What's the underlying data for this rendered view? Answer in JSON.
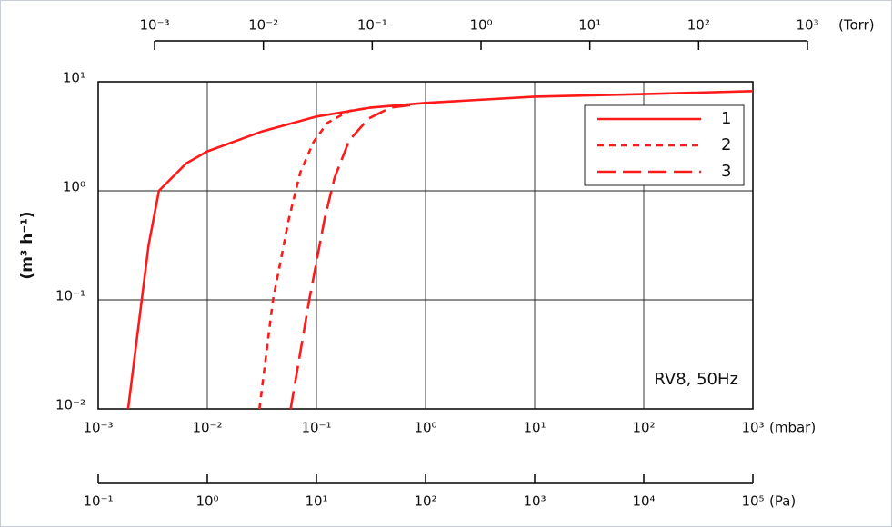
{
  "chart_data": {
    "type": "line",
    "y_label": "(m³ h⁻¹)",
    "x_unit": "(mbar)",
    "annotation": "RV8, 50Hz",
    "log_x": true,
    "log_y": true,
    "grid": true,
    "legend_position": "upper right",
    "xlim": [
      0.001,
      1000
    ],
    "xticks": [
      {
        "value": 0.001,
        "label": "10⁻³"
      },
      {
        "value": 0.01,
        "label": "10⁻²"
      },
      {
        "value": 0.1,
        "label": "10⁻¹"
      },
      {
        "value": 1,
        "label": "10⁰"
      },
      {
        "value": 10,
        "label": "10¹"
      },
      {
        "value": 100,
        "label": "10²"
      },
      {
        "value": 1000,
        "label": "10³"
      }
    ],
    "ylim": [
      0.01,
      10
    ],
    "yticks": [
      {
        "value": 0.01,
        "label": "10⁻²"
      },
      {
        "value": 0.1,
        "label": "10⁻¹"
      },
      {
        "value": 1,
        "label": "10⁰"
      },
      {
        "value": 10,
        "label": "10¹"
      }
    ],
    "torr_axis": {
      "unit": "(Torr)",
      "lim": [
        0.001,
        1000
      ],
      "ticks": [
        {
          "value": 0.001,
          "label": "10⁻³"
        },
        {
          "value": 0.01,
          "label": "10⁻²"
        },
        {
          "value": 0.1,
          "label": "10⁻¹"
        },
        {
          "value": 1,
          "label": "10⁰"
        },
        {
          "value": 10,
          "label": "10¹"
        },
        {
          "value": 100,
          "label": "10²"
        },
        {
          "value": 1000,
          "label": "10³"
        }
      ]
    },
    "pa_axis": {
      "unit": "(Pa)",
      "lim": [
        0.1,
        100000
      ],
      "ticks": [
        {
          "value": 0.1,
          "label": "10⁻¹"
        },
        {
          "value": 1,
          "label": "10⁰"
        },
        {
          "value": 10,
          "label": "10¹"
        },
        {
          "value": 100,
          "label": "10²"
        },
        {
          "value": 1000,
          "label": "10³"
        },
        {
          "value": 10000,
          "label": "10⁴"
        },
        {
          "value": 100000,
          "label": "10⁵"
        }
      ]
    },
    "series": [
      {
        "name": "1",
        "color": "#ff1a1a",
        "x": [
          0.00188,
          0.0029,
          0.0036,
          0.0064,
          0.01,
          0.0316,
          0.1,
          0.316,
          1,
          10,
          100,
          1000
        ],
        "values": [
          0.01,
          0.32,
          1,
          1.78,
          2.3,
          3.5,
          4.8,
          5.8,
          6.4,
          7.3,
          7.7,
          8.2
        ]
      },
      {
        "name": "2",
        "color": "#ff1a1a",
        "x": [
          0.03,
          0.04,
          0.056,
          0.071,
          0.094,
          0.126,
          0.2,
          0.316
        ],
        "values": [
          0.01,
          0.1,
          0.56,
          1.47,
          2.8,
          4.2,
          5.4,
          5.8
        ]
      },
      {
        "name": "3",
        "color": "#ff1a1a",
        "x": [
          0.058,
          0.086,
          0.119,
          0.147,
          0.2,
          0.3,
          0.48,
          0.72
        ],
        "values": [
          0.01,
          0.1,
          0.56,
          1.33,
          2.9,
          4.6,
          5.8,
          6.1
        ]
      }
    ]
  }
}
